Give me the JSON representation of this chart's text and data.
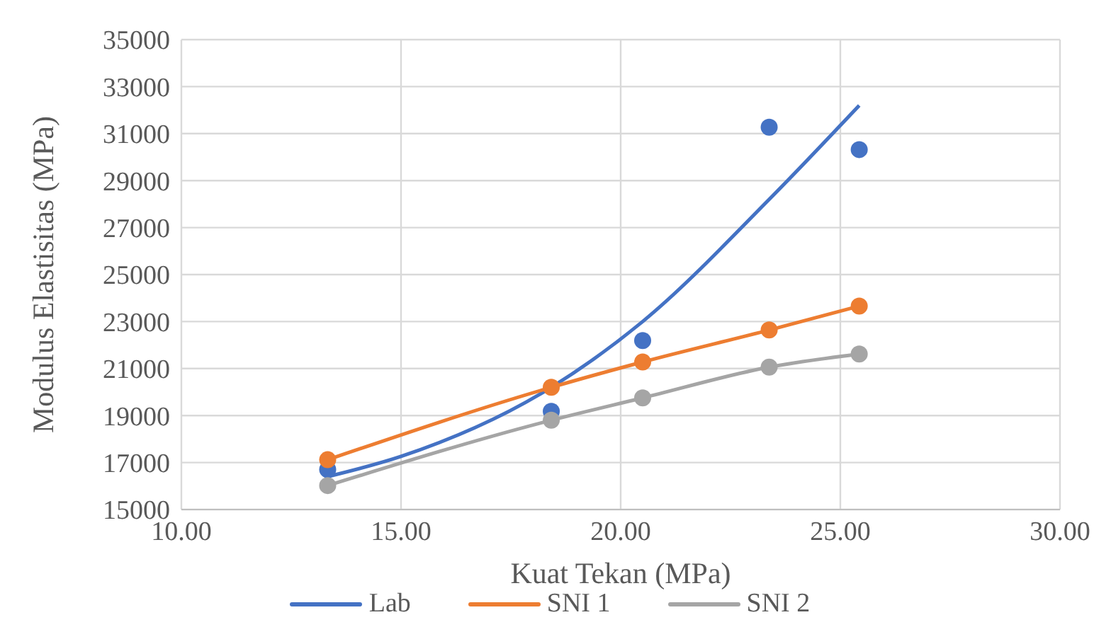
{
  "chart_data": {
    "type": "line",
    "xlabel": "Kuat Tekan (MPa)",
    "ylabel": "Modulus Elastisitas (MPa)",
    "xlim": [
      10,
      30
    ],
    "xticks": [
      {
        "value": 10,
        "label": "10.00"
      },
      {
        "value": 15,
        "label": "15.00"
      },
      {
        "value": 20,
        "label": "20.00"
      },
      {
        "value": 25,
        "label": "25.00"
      },
      {
        "value": 30,
        "label": "30.00"
      }
    ],
    "ylim": [
      15000,
      35000
    ],
    "yticks": [
      15000,
      17000,
      19000,
      21000,
      23000,
      25000,
      27000,
      29000,
      31000,
      33000,
      35000
    ],
    "x": [
      13.33,
      18.42,
      20.5,
      23.38,
      25.43
    ],
    "series": [
      {
        "type": "scatter",
        "color": "#4472c4",
        "values": [
          16700,
          19180,
          22190,
          31270,
          30320
        ]
      },
      {
        "name": "Lab",
        "type": "line",
        "marker": "none",
        "color": "#4472c4",
        "x": [
          13.33,
          15,
          18.42,
          20.5,
          23.38,
          25.43
        ],
        "values": [
          16400,
          17260,
          20200,
          23000,
          28200,
          32200
        ]
      },
      {
        "name": "SNI 1",
        "marker": "circle",
        "color": "#ed7d31",
        "values": [
          17120,
          20200,
          21280,
          22640,
          23660
        ]
      },
      {
        "name": "SNI 2",
        "marker": "circle",
        "color": "#a5a5a5",
        "values": [
          16020,
          18800,
          19750,
          21060,
          21620
        ]
      }
    ],
    "grid": true,
    "legend": "bottom"
  }
}
